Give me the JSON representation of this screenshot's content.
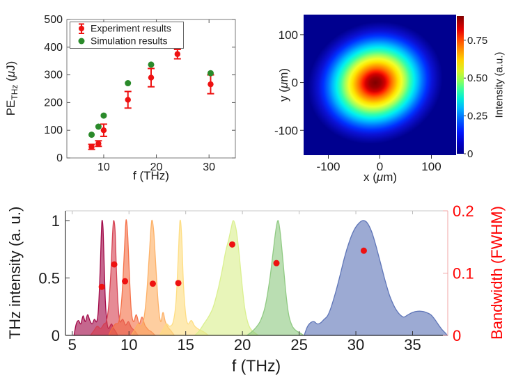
{
  "figure_bg": "#ffffff",
  "accent_red": "#ee1111",
  "accent_green": "#2a8a2a",
  "chart_data": [
    {
      "type": "scatter",
      "title": "",
      "xlabel": "f (THz)",
      "ylabel": "PE_THz (uJ)",
      "ylabel_parts": {
        "main": "PE",
        "sub": "THz",
        "unit_open": " (",
        "unit_mu": "μ",
        "unit_close": "J)"
      },
      "xlim": [
        3,
        35
      ],
      "ylim": [
        0,
        500
      ],
      "x_ticks": [
        10,
        20,
        30
      ],
      "y_ticks": [
        0,
        100,
        200,
        300,
        400,
        500
      ],
      "legend_position": "top-left",
      "series": [
        {
          "name": "Experiment results",
          "color": "#ee1111",
          "marker": "errorbar-dot",
          "x": [
            7.7,
            9.0,
            10.0,
            14.6,
            19.0,
            24.0,
            30.3
          ],
          "y": [
            40,
            52,
            100,
            210,
            290,
            375,
            266
          ],
          "yerr": [
            9,
            10,
            22,
            30,
            33,
            17,
            34
          ]
        },
        {
          "name": "Simulation results",
          "color": "#2a8a2a",
          "marker": "dot",
          "x": [
            7.7,
            9.0,
            10.0,
            14.6,
            19.0,
            24.0,
            30.3
          ],
          "y": [
            84,
            113,
            153,
            270,
            337,
            410,
            306
          ]
        }
      ]
    },
    {
      "type": "heatmap",
      "title": "",
      "xlabel": "x (um)",
      "ylabel": "y (um)",
      "xlabel_parts": {
        "pre": "x (",
        "mu": "μ",
        "post": "m)"
      },
      "ylabel_parts": {
        "pre": "y (",
        "mu": "μ",
        "post": "m)"
      },
      "xlim": [
        -148,
        148
      ],
      "ylim": [
        -152,
        142
      ],
      "x_ticks": [
        -100,
        0,
        100
      ],
      "y_ticks": [
        -100,
        0,
        100
      ],
      "colormap": "jet",
      "beam": {
        "model": "gaussian",
        "center_um": [
          -7,
          0
        ],
        "fwhm_um": [
          110,
          95
        ],
        "tilt_deg": 20,
        "peak_intensity": 0.9
      },
      "colorbar": {
        "label": "Intensity (a.u.)",
        "max": 0.91,
        "ticks": [
          0,
          0.25,
          0.5,
          0.75
        ],
        "tick_labels": [
          "0",
          "0.25",
          "0.50",
          "0.75"
        ]
      }
    },
    {
      "type": "area",
      "title": "",
      "xlabel": "f (THz)",
      "ylabel_left": "THz intensity (a. u.)",
      "ylabel_right": "Bandwidth (FWHM)",
      "xlim": [
        4.4,
        38.1
      ],
      "ylim_left": [
        0,
        1.085
      ],
      "ylim_right": [
        0,
        0.2
      ],
      "x_ticks": [
        5,
        10,
        15,
        20,
        25,
        30,
        35
      ],
      "y_ticks_left": [
        0,
        0.5,
        1
      ],
      "y_tick_labels_left": [
        "0",
        "0.5",
        "1"
      ],
      "y_ticks_right": [
        0,
        0.1,
        0.2
      ],
      "y_tick_labels_right": [
        "0",
        "0.1",
        "0.2"
      ],
      "right_axis_color": "#ff0000",
      "right_spine_color": "#f2a6a6",
      "peaks": [
        {
          "center_thz": 7.6,
          "color": "#9E0142",
          "points": [
            [
              5.15,
              0
            ],
            [
              5.35,
              0.1
            ],
            [
              5.55,
              0.13
            ],
            [
              5.75,
              0.1
            ],
            [
              5.95,
              0.17
            ],
            [
              6.15,
              0.12
            ],
            [
              6.35,
              0.18
            ],
            [
              6.55,
              0.13
            ],
            [
              6.75,
              0.1
            ],
            [
              6.95,
              0.14
            ],
            [
              7.15,
              0.12
            ],
            [
              7.3,
              0.22
            ],
            [
              7.45,
              0.55
            ],
            [
              7.55,
              0.85
            ],
            [
              7.62,
              1.0
            ],
            [
              7.72,
              0.92
            ],
            [
              7.82,
              0.6
            ],
            [
              7.92,
              0.3
            ],
            [
              8.05,
              0.12
            ],
            [
              8.2,
              0.06
            ],
            [
              8.45,
              0.1
            ],
            [
              8.65,
              0.06
            ],
            [
              8.85,
              0.03
            ],
            [
              9.0,
              0
            ]
          ]
        },
        {
          "center_thz": 8.7,
          "color": "#D53E4F",
          "points": [
            [
              6.6,
              0
            ],
            [
              6.9,
              0.04
            ],
            [
              7.2,
              0.08
            ],
            [
              7.5,
              0.06
            ],
            [
              7.8,
              0.1
            ],
            [
              8.0,
              0.12
            ],
            [
              8.2,
              0.25
            ],
            [
              8.4,
              0.55
            ],
            [
              8.55,
              0.88
            ],
            [
              8.65,
              1.0
            ],
            [
              8.78,
              0.9
            ],
            [
              8.9,
              0.55
            ],
            [
              9.05,
              0.25
            ],
            [
              9.2,
              0.12
            ],
            [
              9.45,
              0.14
            ],
            [
              9.7,
              0.09
            ],
            [
              9.95,
              0.12
            ],
            [
              10.2,
              0.07
            ],
            [
              10.5,
              0.04
            ],
            [
              10.8,
              0
            ]
          ]
        },
        {
          "center_thz": 9.75,
          "color": "#F46D43",
          "points": [
            [
              8.2,
              0
            ],
            [
              8.5,
              0.06
            ],
            [
              8.8,
              0.1
            ],
            [
              9.1,
              0.12
            ],
            [
              9.35,
              0.3
            ],
            [
              9.55,
              0.65
            ],
            [
              9.7,
              0.95
            ],
            [
              9.78,
              1.0
            ],
            [
              9.9,
              0.85
            ],
            [
              10.05,
              0.5
            ],
            [
              10.2,
              0.22
            ],
            [
              10.4,
              0.12
            ],
            [
              10.65,
              0.18
            ],
            [
              10.9,
              0.1
            ],
            [
              11.15,
              0.16
            ],
            [
              11.4,
              0.09
            ],
            [
              11.7,
              0.05
            ],
            [
              12.0,
              0.03
            ],
            [
              12.3,
              0
            ]
          ]
        },
        {
          "center_thz": 12.05,
          "color": "#FDAE61",
          "points": [
            [
              10.2,
              0
            ],
            [
              10.5,
              0.05
            ],
            [
              10.8,
              0.1
            ],
            [
              11.05,
              0.08
            ],
            [
              11.3,
              0.14
            ],
            [
              11.55,
              0.35
            ],
            [
              11.8,
              0.72
            ],
            [
              11.95,
              0.95
            ],
            [
              12.05,
              1.0
            ],
            [
              12.2,
              0.88
            ],
            [
              12.4,
              0.55
            ],
            [
              12.6,
              0.25
            ],
            [
              12.8,
              0.12
            ],
            [
              13.0,
              0.2
            ],
            [
              13.2,
              0.12
            ],
            [
              13.45,
              0.07
            ],
            [
              13.7,
              0.04
            ],
            [
              14.0,
              0
            ]
          ]
        },
        {
          "center_thz": 14.5,
          "color": "#FEDC7E",
          "points": [
            [
              12.7,
              0
            ],
            [
              13.0,
              0.05
            ],
            [
              13.3,
              0.1
            ],
            [
              13.6,
              0.08
            ],
            [
              13.9,
              0.12
            ],
            [
              14.15,
              0.3
            ],
            [
              14.35,
              0.7
            ],
            [
              14.5,
              1.0
            ],
            [
              14.65,
              0.85
            ],
            [
              14.8,
              0.45
            ],
            [
              15.0,
              0.18
            ],
            [
              15.2,
              0.1
            ],
            [
              15.5,
              0.13
            ],
            [
              15.8,
              0.08
            ],
            [
              16.2,
              0.05
            ],
            [
              16.6,
              0.03
            ],
            [
              17.0,
              0
            ]
          ]
        },
        {
          "center_thz": 19.2,
          "color": "#D9EF8B",
          "points": [
            [
              15.8,
              0
            ],
            [
              16.2,
              0.04
            ],
            [
              16.6,
              0.1
            ],
            [
              17.0,
              0.16
            ],
            [
              17.4,
              0.24
            ],
            [
              17.8,
              0.38
            ],
            [
              18.2,
              0.56
            ],
            [
              18.5,
              0.72
            ],
            [
              18.8,
              0.84
            ],
            [
              19.0,
              0.93
            ],
            [
              19.2,
              1.0
            ],
            [
              19.45,
              0.92
            ],
            [
              19.7,
              0.72
            ],
            [
              19.95,
              0.46
            ],
            [
              20.2,
              0.24
            ],
            [
              20.45,
              0.12
            ],
            [
              20.7,
              0.06
            ],
            [
              21.0,
              0.03
            ],
            [
              21.4,
              0
            ]
          ]
        },
        {
          "center_thz": 23.15,
          "color": "#8cc87e",
          "points": [
            [
              20.4,
              0
            ],
            [
              20.8,
              0.03
            ],
            [
              21.2,
              0.07
            ],
            [
              21.6,
              0.13
            ],
            [
              22.0,
              0.25
            ],
            [
              22.4,
              0.48
            ],
            [
              22.7,
              0.72
            ],
            [
              22.95,
              0.92
            ],
            [
              23.15,
              1.0
            ],
            [
              23.35,
              0.88
            ],
            [
              23.6,
              0.62
            ],
            [
              23.85,
              0.35
            ],
            [
              24.1,
              0.17
            ],
            [
              24.4,
              0.08
            ],
            [
              24.75,
              0.04
            ],
            [
              25.1,
              0.02
            ],
            [
              25.4,
              0
            ]
          ]
        },
        {
          "center_thz": 30.7,
          "color": "#5a71b5",
          "points": [
            [
              25.45,
              0
            ],
            [
              25.7,
              0.07
            ],
            [
              26.0,
              0.11
            ],
            [
              26.3,
              0.12
            ],
            [
              26.6,
              0.1
            ],
            [
              26.9,
              0.11
            ],
            [
              27.2,
              0.14
            ],
            [
              27.5,
              0.17
            ],
            [
              27.8,
              0.24
            ],
            [
              28.2,
              0.37
            ],
            [
              28.6,
              0.52
            ],
            [
              29.0,
              0.68
            ],
            [
              29.4,
              0.81
            ],
            [
              29.8,
              0.91
            ],
            [
              30.2,
              0.97
            ],
            [
              30.6,
              1.0
            ],
            [
              31.0,
              0.98
            ],
            [
              31.4,
              0.9
            ],
            [
              31.8,
              0.77
            ],
            [
              32.2,
              0.62
            ],
            [
              32.6,
              0.47
            ],
            [
              33.0,
              0.34
            ],
            [
              33.4,
              0.25
            ],
            [
              33.8,
              0.19
            ],
            [
              34.2,
              0.16
            ],
            [
              34.6,
              0.18
            ],
            [
              35.0,
              0.2
            ],
            [
              35.4,
              0.21
            ],
            [
              35.8,
              0.21
            ],
            [
              36.2,
              0.2
            ],
            [
              36.6,
              0.18
            ],
            [
              36.95,
              0.14
            ],
            [
              37.3,
              0.09
            ],
            [
              37.6,
              0.05
            ],
            [
              37.9,
              0.02
            ],
            [
              38.05,
              0
            ]
          ]
        }
      ],
      "bandwidth_dots": {
        "color": "#ee1111",
        "f_thz": [
          7.6,
          8.7,
          9.65,
          12.1,
          14.35,
          19.1,
          23.0,
          30.7
        ],
        "fwhm": [
          0.078,
          0.114,
          0.087,
          0.083,
          0.084,
          0.146,
          0.116,
          0.136
        ]
      }
    }
  ]
}
